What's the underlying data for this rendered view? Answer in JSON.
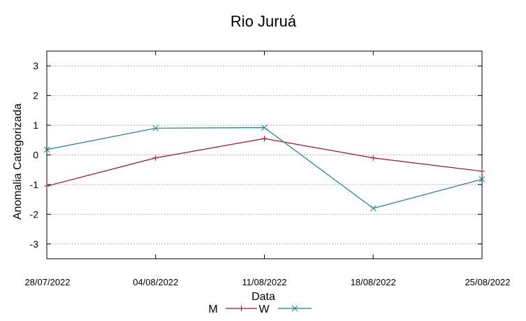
{
  "chart_data": {
    "type": "line",
    "title": "Rio Juruá",
    "xlabel": "Data",
    "ylabel": "Anomalia Categorizada",
    "categories": [
      "28/07/2022",
      "04/08/2022",
      "11/08/2022",
      "18/08/2022",
      "25/08/2022"
    ],
    "yticks": [
      "3",
      "2",
      "1",
      "0",
      "-1",
      "-2",
      "-3"
    ],
    "ylim": [
      -3.5,
      3.5
    ],
    "grid": true,
    "legend_position": "bottom",
    "series": [
      {
        "name": "M",
        "marker": "+",
        "color": "#a0142a",
        "values": [
          -1.05,
          -0.1,
          0.55,
          -0.1,
          -0.55
        ]
      },
      {
        "name": "W",
        "marker": "x",
        "color": "#1f7f86",
        "values": [
          0.18,
          0.9,
          0.92,
          -1.8,
          -0.82
        ]
      }
    ]
  }
}
